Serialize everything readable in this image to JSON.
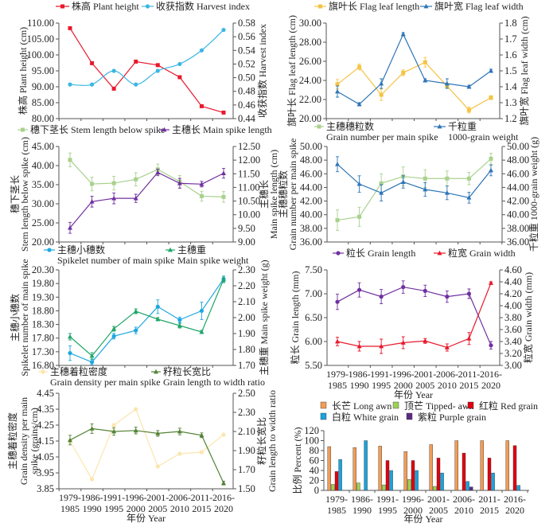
{
  "categories": [
    [
      "1979-",
      "1985"
    ],
    [
      "1986-",
      "1990"
    ],
    [
      "1991-",
      "1995"
    ],
    [
      "1996-",
      "2000"
    ],
    [
      "2001-",
      "2005"
    ],
    [
      "2006-",
      "2010"
    ],
    [
      "2011-",
      "2015"
    ],
    [
      "2016-",
      "2020"
    ]
  ],
  "xlabel": "年份 Year",
  "chart_data": [
    {
      "type": "line",
      "left_axis": {
        "label": [
          "株高 Plant height (cm)"
        ],
        "range": [
          80,
          110
        ],
        "ticks": [
          "80.00",
          "85.00",
          "90.00",
          "95.00",
          "100.00",
          "105.00",
          "110.00"
        ]
      },
      "right_axis": {
        "label": [
          "收获指数 Harvest index"
        ],
        "range": [
          0.44,
          0.58
        ],
        "ticks": [
          "0.44",
          "0.46",
          "0.48",
          "0.50",
          "0.52",
          "0.54",
          "0.56",
          "0.58"
        ]
      },
      "series": [
        {
          "name": [
            "株高 Plant height"
          ],
          "axis": "left",
          "color": "#e8192c",
          "marker": "square",
          "values": [
            108.4,
            97.4,
            89.4,
            97.9,
            96.8,
            93.0,
            83.9,
            81.9
          ]
        },
        {
          "name": [
            "收获指数 Harvest index"
          ],
          "axis": "right",
          "color": "#3cb6e3",
          "marker": "circle",
          "smooth": true,
          "values": [
            0.49,
            0.49,
            0.51,
            0.49,
            0.51,
            0.52,
            0.54,
            0.57
          ]
        }
      ]
    },
    {
      "type": "line",
      "left_axis": {
        "label": [
          "旗叶长 Flag leaf length (cm)"
        ],
        "range": [
          20,
          30
        ],
        "ticks": [
          "20.00",
          "22.00",
          "24.00",
          "26.00",
          "28.00",
          "30.00"
        ]
      },
      "right_axis": {
        "label": [
          "旗叶宽 Flag leaf width (cm)"
        ],
        "range": [
          1.2,
          1.8
        ],
        "ticks": [
          "1.2",
          "1.3",
          "1.4",
          "1.5",
          "1.6",
          "1.7",
          "1.8"
        ]
      },
      "series": [
        {
          "name": [
            "旗叶长 Flag leaf length"
          ],
          "axis": "left",
          "color": "#f5c342",
          "marker": "square",
          "values": [
            23.6,
            25.4,
            22.5,
            24.8,
            25.9,
            23.4,
            20.9,
            22.2
          ],
          "error": [
            0.5,
            0.3,
            0.6,
            0.3,
            0.5,
            0.2,
            0.3,
            0.2
          ]
        },
        {
          "name": [
            "旗叶宽 Flag leaf width"
          ],
          "axis": "right",
          "color": "#2e75b6",
          "marker": "triangle",
          "values": [
            1.37,
            1.29,
            1.42,
            1.73,
            1.44,
            1.42,
            1.4,
            1.5
          ],
          "error": [
            0.035,
            0.01,
            0.03,
            0.01,
            0.01,
            0.03,
            0.01,
            0.01
          ]
        }
      ]
    },
    {
      "type": "line",
      "left_axis": {
        "label": [
          "穗下茎长",
          "Stem length below spike (cm)"
        ],
        "range": [
          20,
          45
        ],
        "ticks": [
          "20.00",
          "25.00",
          "30.00",
          "35.00",
          "40.00",
          "45.00"
        ]
      },
      "right_axis": {
        "label": [
          "主穗长",
          "Main spike length (cm)"
        ],
        "range": [
          9,
          12.5
        ],
        "ticks": [
          "9.00",
          "9.50",
          "10.00",
          "10.50",
          "11.00",
          "11.50",
          "12.00",
          "12.50"
        ]
      },
      "series": [
        {
          "name": [
            "穗下茎长 Stem length below spike"
          ],
          "axis": "left",
          "color": "#a9d18e",
          "marker": "square",
          "values": [
            41.5,
            35.2,
            35.4,
            36.4,
            39.0,
            35.8,
            32.0,
            31.8
          ],
          "error": [
            1.8,
            1.8,
            1.8,
            1.7,
            1.4,
            1.6,
            1.3,
            1.4
          ]
        },
        {
          "name": [
            "主穗长 Main spike length"
          ],
          "axis": "right",
          "color": "#7030a0",
          "marker": "triangle",
          "values": [
            9.52,
            10.48,
            10.6,
            10.6,
            11.55,
            11.15,
            11.12,
            11.52
          ],
          "error": [
            0.2,
            0.2,
            0.2,
            0.15,
            0.12,
            0.18,
            0.1,
            0.18
          ]
        }
      ]
    },
    {
      "type": "line",
      "left_axis": {
        "label": [
          "主穗穗粒数",
          "Grain number per main spike"
        ],
        "range": [
          36,
          50
        ],
        "ticks": [
          "36.00",
          "38.00",
          "40.00",
          "42.00",
          "44.00",
          "46.00",
          "48.00",
          "50.00"
        ]
      },
      "right_axis": {
        "label": [
          "千粒重 1000-grain weight (g)"
        ],
        "range": [
          36,
          50
        ],
        "ticks": [
          "36.00",
          "38.00",
          "40.00",
          "42.00",
          "44.00",
          "46.00",
          "48.00",
          "50.00"
        ]
      },
      "series": [
        {
          "name": [
            "主穗穗粒数",
            "Grain number per main spike"
          ],
          "axis": "left",
          "color": "#a9d18e",
          "marker": "square",
          "values": [
            39.2,
            39.7,
            44.6,
            45.6,
            45.3,
            45.3,
            45.3,
            48.2
          ],
          "error": [
            1.5,
            1.4,
            1.4,
            1.4,
            1.3,
            1.1,
            0.9,
            0.8
          ]
        },
        {
          "name": [
            "千粒重",
            "1000-grain weight"
          ],
          "axis": "right",
          "color": "#2e75b6",
          "marker": "triangle",
          "values": [
            47.4,
            44.5,
            43.2,
            44.8,
            43.7,
            43.2,
            42.5,
            46.5
          ],
          "error": [
            1.1,
            1.2,
            1.2,
            0.9,
            1.0,
            1.0,
            0.8,
            0.8
          ]
        }
      ]
    },
    {
      "type": "line",
      "left_axis": {
        "label": [
          "主穗小穗数",
          "Spikelet number of main spike"
        ],
        "range": [
          16.8,
          20.3
        ],
        "ticks": [
          "16.80",
          "17.30",
          "17.80",
          "18.30",
          "18.80",
          "19.30",
          "19.80",
          "20.30"
        ]
      },
      "right_axis": {
        "label": [
          "主穗重 Main spike weight (g)"
        ],
        "range": [
          1.7,
          2.3
        ],
        "ticks": [
          "1.70",
          "1.80",
          "1.90",
          "2.00",
          "2.10",
          "2.20",
          "2.30"
        ]
      },
      "series": [
        {
          "name": [
            "主穗小穗数",
            "Spikelet number of main spike"
          ],
          "axis": "left",
          "color": "#1fa7e0",
          "marker": "circle",
          "values": [
            17.25,
            16.92,
            17.87,
            18.08,
            18.95,
            18.47,
            18.8,
            19.97
          ],
          "error": [
            0.27,
            0.1,
            0.1,
            0.12,
            0.25,
            0.1,
            0.32,
            0.1
          ]
        },
        {
          "name": [
            "主穗重",
            "Main spike weight"
          ],
          "axis": "right",
          "color": "#20a66a",
          "marker": "triangle",
          "values": [
            1.88,
            1.76,
            1.93,
            2.04,
            1.99,
            1.95,
            1.91,
            2.24
          ],
          "error": [
            0.02,
            0.02,
            0.015,
            0.015,
            0.01,
            0.015,
            0.01,
            0.02
          ]
        }
      ]
    },
    {
      "type": "line",
      "show_x_labels": true,
      "left_axis": {
        "label": [
          "粒长 Grain length (mm)"
        ],
        "range": [
          5.5,
          7.5
        ],
        "ticks": [
          "5.50",
          "6.00",
          "6.50",
          "7.00",
          "7.50"
        ]
      },
      "right_axis": {
        "label": [
          "粒宽 Grain width (mm)"
        ],
        "range": [
          3.0,
          4.6
        ],
        "ticks": [
          "3.00",
          "3.20",
          "3.40",
          "3.60",
          "3.80",
          "4.00",
          "4.20",
          "4.40",
          "4.60"
        ]
      },
      "series": [
        {
          "name": [
            "粒长 Grain length"
          ],
          "axis": "left",
          "color": "#7030a0",
          "marker": "circle",
          "values": [
            6.83,
            7.08,
            6.94,
            7.14,
            7.06,
            6.94,
            7.0,
            5.92
          ],
          "error": [
            0.16,
            0.15,
            0.15,
            0.13,
            0.12,
            0.12,
            0.1,
            0.08
          ]
        },
        {
          "name": [
            "粒宽 Grain width"
          ],
          "axis": "right",
          "color": "#e8192c",
          "marker": "triangle",
          "values": [
            3.4,
            3.32,
            3.32,
            3.38,
            3.41,
            3.3,
            3.45,
            4.38
          ],
          "error": [
            0.07,
            0.08,
            0.12,
            0.1,
            0.04,
            0.06,
            0.1,
            0.02
          ]
        }
      ]
    },
    {
      "type": "line",
      "show_x_labels": true,
      "left_axis": {
        "label": [
          "主穗着粒密度",
          "Grain density per main",
          "spike (grains/cm)"
        ],
        "range": [
          3.85,
          4.45
        ],
        "ticks": [
          "3.85",
          "3.95",
          "4.05",
          "4.15",
          "4.25",
          "4.35",
          "4.45"
        ]
      },
      "right_axis": {
        "label": [
          "籽粒长宽比",
          "Grain length to width ratio"
        ],
        "range": [
          1.5,
          2.5
        ],
        "ticks": [
          "1.50",
          "1.70",
          "1.90",
          "2.10",
          "2.30",
          "2.50"
        ]
      },
      "series": [
        {
          "name": [
            "主穗着粒密度",
            "Grain density per main spike"
          ],
          "axis": "left",
          "color": "#fbe6ae",
          "marker": "circle",
          "values": [
            4.15,
            3.91,
            4.25,
            4.35,
            3.99,
            4.07,
            4.08,
            4.19
          ]
        },
        {
          "name": [
            "籽粒长宽比",
            "Grain length to width ratio"
          ],
          "axis": "right",
          "color": "#548235",
          "marker": "triangle",
          "values": [
            2.01,
            2.13,
            2.1,
            2.11,
            2.08,
            2.1,
            2.06,
            1.56
          ],
          "error": [
            0.05,
            0.05,
            0.04,
            0.035,
            0.03,
            0.035,
            0.025,
            0.02
          ]
        }
      ]
    },
    {
      "type": "bar",
      "show_x_labels": true,
      "left_axis": {
        "label": [
          "比例 Percent (%)"
        ],
        "range": [
          0,
          120
        ],
        "ticks": [
          "0",
          "20",
          "40",
          "60",
          "80",
          "100",
          "120"
        ]
      },
      "series": [
        {
          "name": [
            "长芒 Long awn"
          ],
          "color": "#f19c56",
          "values": [
            88,
            86,
            89,
            78,
            92,
            100,
            100,
            100
          ]
        },
        {
          "name": [
            "顶芒 Tipped- awn"
          ],
          "color": "#9bd154",
          "values": [
            12,
            15,
            11,
            22,
            8,
            0,
            0,
            0
          ]
        },
        {
          "name": [
            "红粒 Red grain"
          ],
          "color": "#e00010",
          "values": [
            38,
            0,
            60,
            60,
            65,
            75,
            65,
            90
          ]
        },
        {
          "name": [
            "白粒 White grain"
          ],
          "color": "#1aa3dc",
          "values": [
            62,
            100,
            40,
            40,
            35,
            18,
            35,
            10
          ]
        },
        {
          "name": [
            "紫粒 Purple grain"
          ],
          "color": "#5b2a86",
          "values": [
            0,
            0,
            0,
            0,
            0,
            7,
            0,
            0
          ]
        }
      ]
    }
  ]
}
